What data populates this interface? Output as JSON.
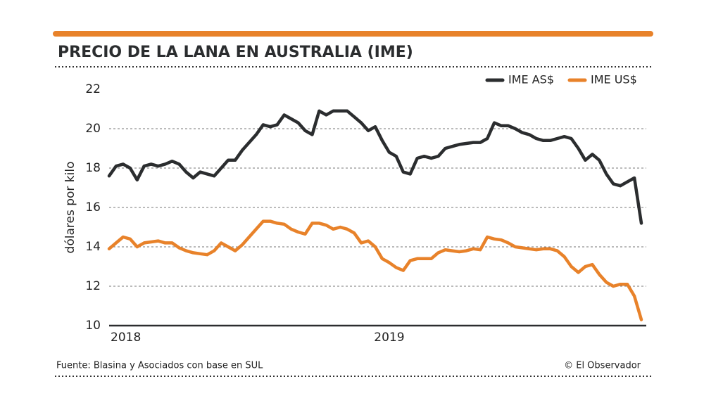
{
  "chart_data": {
    "type": "line",
    "title": "PRECIO DE LA LANA EN AUSTRALIA (IME)",
    "y_label": "dólares por kilo",
    "source": "Fuente: Blasina y Asociados con base en SUL",
    "credit": "© El Observador",
    "categories": [
      "2018",
      null,
      null,
      null,
      null,
      null,
      null,
      null,
      null,
      null,
      null,
      null,
      null,
      null,
      null,
      null,
      null,
      null,
      null,
      null,
      null,
      null,
      null,
      null,
      null,
      null,
      null,
      null,
      null,
      null,
      null,
      null,
      null,
      null,
      null,
      null,
      null,
      null,
      null,
      null,
      "2019",
      null,
      null,
      null,
      null,
      null,
      null,
      null,
      null,
      null,
      null,
      null,
      null,
      null,
      null,
      null,
      null,
      null,
      null,
      null,
      null,
      null,
      null,
      null,
      null,
      null,
      null,
      null,
      null,
      null,
      null,
      null,
      null,
      null,
      null,
      null,
      null
    ],
    "series": [
      {
        "name": "IME AS$",
        "color": "#2b2d2f",
        "values": [
          17.6,
          18.1,
          18.2,
          18.0,
          17.4,
          18.1,
          18.2,
          18.1,
          18.2,
          18.35,
          18.2,
          17.8,
          17.5,
          17.8,
          17.7,
          17.6,
          18.0,
          18.4,
          18.4,
          18.9,
          19.3,
          19.7,
          20.2,
          20.1,
          20.2,
          20.7,
          20.5,
          20.3,
          19.9,
          19.7,
          20.9,
          20.7,
          20.9,
          20.9,
          20.9,
          20.6,
          20.3,
          19.9,
          20.1,
          19.4,
          18.8,
          18.6,
          17.8,
          17.7,
          18.5,
          18.6,
          18.5,
          18.6,
          19.0,
          19.1,
          19.2,
          19.25,
          19.3,
          19.3,
          19.5,
          20.3,
          20.15,
          20.15,
          20.0,
          19.8,
          19.7,
          19.5,
          19.4,
          19.4,
          19.5,
          19.6,
          19.5,
          19.0,
          18.4,
          18.7,
          18.4,
          17.7,
          17.2,
          17.1,
          17.3,
          17.5,
          15.2
        ]
      },
      {
        "name": "IME US$",
        "color": "#e8822a",
        "values": [
          13.9,
          14.2,
          14.5,
          14.4,
          14.0,
          14.2,
          14.25,
          14.3,
          14.2,
          14.2,
          13.95,
          13.8,
          13.7,
          13.65,
          13.6,
          13.8,
          14.2,
          14.0,
          13.8,
          14.1,
          14.5,
          14.9,
          15.3,
          15.3,
          15.2,
          15.15,
          14.9,
          14.75,
          14.65,
          15.2,
          15.2,
          15.1,
          14.9,
          15.0,
          14.9,
          14.7,
          14.2,
          14.3,
          14.0,
          13.4,
          13.2,
          12.95,
          12.8,
          13.3,
          13.4,
          13.4,
          13.4,
          13.7,
          13.85,
          13.8,
          13.75,
          13.8,
          13.9,
          13.85,
          14.5,
          14.4,
          14.35,
          14.2,
          14.0,
          13.95,
          13.9,
          13.85,
          13.9,
          13.9,
          13.8,
          13.5,
          13.0,
          12.7,
          13.0,
          13.1,
          12.6,
          12.2,
          12.0,
          12.1,
          12.1,
          11.5,
          10.3
        ]
      }
    ],
    "ylim": [
      10,
      22
    ],
    "yticks": [
      10,
      12,
      14,
      16,
      18,
      20,
      22
    ],
    "grid": true,
    "legend": "top-right"
  }
}
